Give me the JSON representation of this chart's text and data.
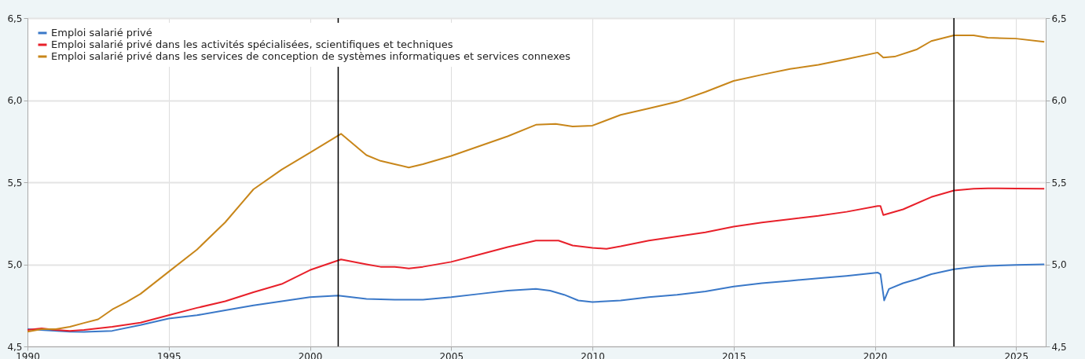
{
  "chart_data": {
    "type": "line",
    "xlim": [
      1990,
      2026.05
    ],
    "xticks": [
      1990,
      1995,
      2000,
      2005,
      2010,
      2015,
      2020,
      2025
    ],
    "ylim": [
      4.5,
      6.5
    ],
    "yticks": [
      {
        "value": 4.5,
        "label": "4,5"
      },
      {
        "value": 5.0,
        "label": "5,0"
      },
      {
        "value": 5.5,
        "label": "5,5"
      },
      {
        "value": 6.0,
        "label": "6,0"
      },
      {
        "value": 6.5,
        "label": "6,5"
      }
    ],
    "y2lim": [
      4.5,
      6.5
    ],
    "y2ticks": [
      {
        "value": 4.5,
        "label": "4,5"
      },
      {
        "value": 5.0,
        "label": "5,0"
      },
      {
        "value": 5.5,
        "label": "5,5"
      },
      {
        "value": 6.0,
        "label": "6,0"
      },
      {
        "value": 6.5,
        "label": "6,5"
      }
    ],
    "grid": true,
    "legend": "top left",
    "ref_lines": [
      {
        "axis": "x",
        "value": 2001.0,
        "color": "#000000"
      },
      {
        "axis": "x",
        "value": 2022.8,
        "color": "#000000"
      }
    ],
    "series": [
      {
        "name": "Emploi salarié privé",
        "color": "#3a78c8",
        "x": [
          1990,
          1991.5,
          1992,
          1993,
          1994,
          1995,
          1996,
          1997,
          1998,
          1999,
          2000,
          2001,
          2002,
          2003,
          2004,
          2005,
          2006,
          2007,
          2008,
          2008.5,
          2009,
          2009.5,
          2010,
          2011,
          2012,
          2013,
          2014,
          2015,
          2016,
          2017,
          2018,
          2019,
          2020.1,
          2020.2,
          2020.33,
          2020.5,
          2021,
          2021.5,
          2022,
          2022.8,
          2023.5,
          2024,
          2025,
          2026
        ],
        "values": [
          4.605,
          4.59,
          4.588,
          4.595,
          4.63,
          4.67,
          4.69,
          4.72,
          4.75,
          4.775,
          4.8,
          4.81,
          4.79,
          4.785,
          4.785,
          4.8,
          4.82,
          4.84,
          4.85,
          4.84,
          4.815,
          4.78,
          4.77,
          4.78,
          4.8,
          4.815,
          4.835,
          4.865,
          4.885,
          4.9,
          4.915,
          4.93,
          4.95,
          4.94,
          4.78,
          4.85,
          4.885,
          4.91,
          4.94,
          4.97,
          4.985,
          4.99,
          4.997,
          5.0
        ]
      },
      {
        "name": "Emploi salarié privé dans les activités spécialisées, scientifiques et techniques",
        "color": "#e8202a",
        "x": [
          1990,
          1990.5,
          1991,
          1991.5,
          1992,
          1993,
          1994,
          1995,
          1996,
          1997,
          1998,
          1999,
          2000,
          2001.1,
          2002,
          2002.5,
          2003,
          2003.5,
          2004,
          2005,
          2006,
          2007,
          2008,
          2008.8,
          2009.3,
          2010,
          2010.5,
          2011,
          2012,
          2013,
          2014,
          2015,
          2016,
          2017,
          2018,
          2019,
          2020.1,
          2020.2,
          2020.3,
          2021,
          2022,
          2022.8,
          2023.5,
          2024,
          2025,
          2026
        ],
        "values": [
          4.6,
          4.61,
          4.6,
          4.595,
          4.6,
          4.62,
          4.645,
          4.69,
          4.735,
          4.775,
          4.83,
          4.88,
          4.965,
          5.03,
          5.0,
          4.985,
          4.985,
          4.975,
          4.985,
          5.015,
          5.06,
          5.105,
          5.145,
          5.145,
          5.115,
          5.1,
          5.095,
          5.11,
          5.145,
          5.17,
          5.195,
          5.23,
          5.255,
          5.275,
          5.295,
          5.32,
          5.355,
          5.355,
          5.3,
          5.335,
          5.41,
          5.45,
          5.46,
          5.463,
          5.462,
          5.46
        ]
      },
      {
        "name": "Emploi salarié privé dans les services de conception de systèmes informatiques et services connexes",
        "color": "#c8861a",
        "x": [
          1990,
          1990.5,
          1991,
          1991.5,
          1992,
          1992.5,
          1993,
          1993.5,
          1994,
          1995,
          1996,
          1997,
          1998,
          1999,
          2000,
          2001.1,
          2002,
          2002.5,
          2003,
          2003.5,
          2004,
          2005,
          2006,
          2007,
          2008,
          2008.7,
          2009.3,
          2010,
          2011,
          2012,
          2013,
          2014,
          2015,
          2016,
          2017,
          2018,
          2019,
          2020.1,
          2020.3,
          2020.7,
          2021.5,
          2022,
          2022.8,
          2023.5,
          2024,
          2025,
          2026
        ],
        "values": [
          4.59,
          4.605,
          4.605,
          4.62,
          4.643,
          4.665,
          4.725,
          4.77,
          4.82,
          4.955,
          5.09,
          5.256,
          5.457,
          5.577,
          5.68,
          5.795,
          5.665,
          5.63,
          5.61,
          5.59,
          5.61,
          5.66,
          5.72,
          5.78,
          5.85,
          5.855,
          5.84,
          5.845,
          5.91,
          5.95,
          5.99,
          6.05,
          6.117,
          6.155,
          6.19,
          6.215,
          6.25,
          6.29,
          6.26,
          6.265,
          6.31,
          6.36,
          6.395,
          6.395,
          6.38,
          6.375,
          6.355
        ]
      }
    ]
  }
}
